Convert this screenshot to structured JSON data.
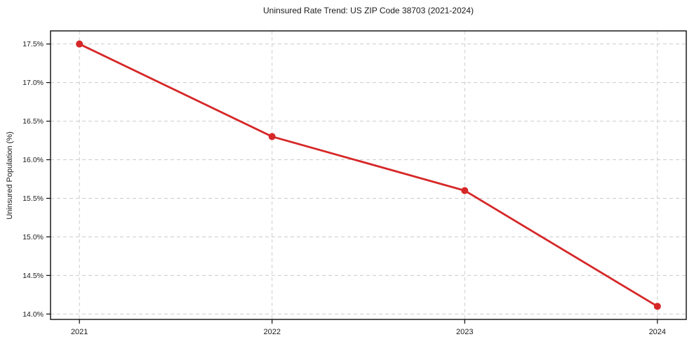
{
  "chart_data": {
    "type": "line",
    "title": "Uninsured Rate Trend: US ZIP Code 38703 (2021-2024)",
    "xlabel": "",
    "ylabel": "Uninsured Population (%)",
    "x": [
      2021,
      2022,
      2023,
      2024
    ],
    "xticklabels": [
      "2021",
      "2022",
      "2023",
      "2024"
    ],
    "series": [
      {
        "name": "uninsured-rate",
        "values": [
          17.5,
          16.3,
          15.6,
          14.1
        ]
      }
    ],
    "yticks": [
      14.0,
      14.5,
      15.0,
      15.5,
      16.0,
      16.5,
      17.0,
      17.5
    ],
    "yticklabels": [
      "14.0%",
      "14.5%",
      "15.0%",
      "15.5%",
      "16.0%",
      "16.5%",
      "17.0%",
      "17.5%"
    ],
    "xlim": [
      2020.85,
      2024.15
    ],
    "ylim": [
      13.93,
      17.67
    ],
    "grid": true,
    "grid_style": "dashed",
    "legend_visible": false,
    "colors": {
      "line": "#d62728",
      "marker": "#d62728",
      "grid": "#cccccc",
      "spine": "#0a0a0a",
      "text": "#1a1a1a",
      "background": "#ffffff"
    }
  }
}
